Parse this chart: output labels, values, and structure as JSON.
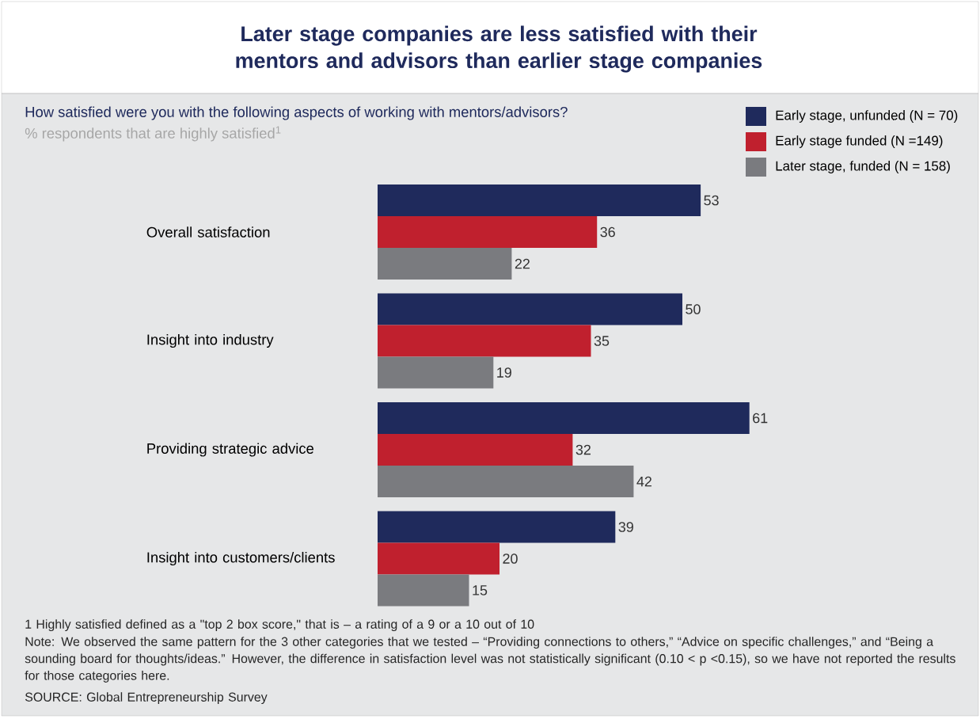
{
  "chart_data": {
    "type": "bar",
    "orientation": "horizontal",
    "title": "Later stage companies are less satisfied with their mentors and advisors than earlier stage companies",
    "subtitle": "How satisfied were you with the following aspects of working with mentors/advisors?",
    "xlabel": "% respondents that are highly satisfied$^{1}$",
    "categories": [
      "Overall satisfaction",
      "Insight into industry",
      "Providing strategic advice",
      "Insight into customers/clients"
    ],
    "series": [
      {
        "name": "Early stage, unfunded (N = 70)",
        "color": "#1f2a5c",
        "values": [
          53,
          50,
          61,
          39
        ]
      },
      {
        "name": "Early stage funded (N =149)",
        "color": "#c0202e",
        "values": [
          36,
          35,
          32,
          20
        ]
      },
      {
        "name": "Later stage, funded (N = 158)",
        "color": "#7a7b7f",
        "values": [
          22,
          19,
          42,
          15
        ]
      }
    ],
    "data_labels": true,
    "legend": "top right",
    "annotations": [
      "1 Highly satisfied defined as a \"top 2 box score,\" that is – a rating of a 9 or a 10 out of 10",
      "Note: We observed the same pattern for the 3 other categories that we tested – “Providing connections to others,” “Advice on specific challenges,” and “Being a sounding board for thoughts/ideas.” However, the difference in satisfaction level was not statistically significant (0.10 < p <0.15), so we have not reported the results for those categories here.",
      "SOURCE: Global Entrepreneurship Survey"
    ]
  }
}
